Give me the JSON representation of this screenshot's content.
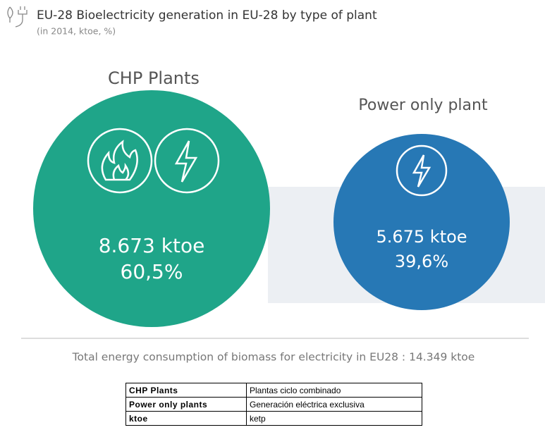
{
  "header": {
    "title": "EU-28 Bioelectricity generation in EU-28 by type of plant",
    "subtitle": "(in 2014, ktoe, %)"
  },
  "plants": [
    {
      "name": "CHP Plants",
      "value": "8.673 ktoe",
      "share": "60,5%"
    },
    {
      "name": "Power only plant",
      "value": "5.675 ktoe",
      "share": "39,6%"
    }
  ],
  "total": "Total energy consumption of biomass for electricity in EU28 : 14.349 ktoe",
  "table": {
    "rows": [
      [
        "CHP Plants",
        "Plantas ciclo combinado"
      ],
      [
        "Power only plants",
        "Generación eléctrica exclusiva"
      ],
      [
        "ktoe",
        "ketp"
      ]
    ]
  }
}
